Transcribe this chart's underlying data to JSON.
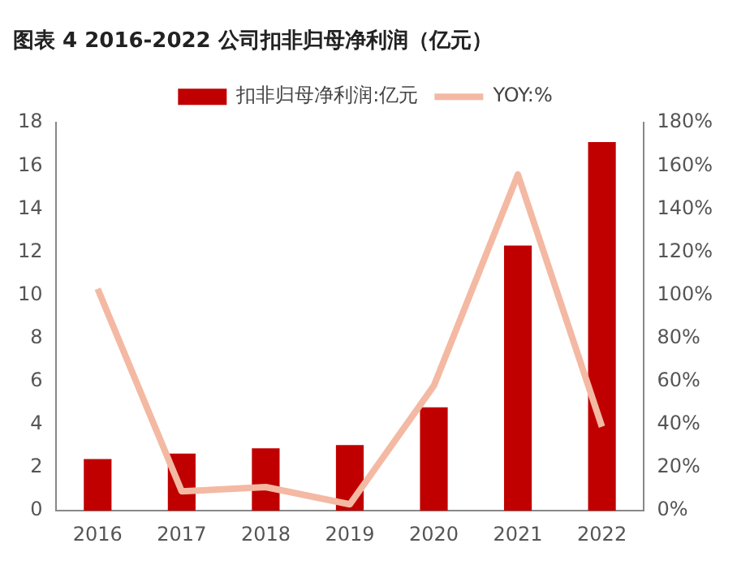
{
  "chart_data": {
    "type": "bar",
    "title": "图表 4 2016-2022 公司扣非归母净利润（亿元）",
    "categories": [
      "2016",
      "2017",
      "2018",
      "2019",
      "2020",
      "2021",
      "2022"
    ],
    "series": [
      {
        "name": "扣非归母净利润:亿元",
        "color": "#c00000",
        "values": [
          2.4,
          2.65,
          2.9,
          3.05,
          4.8,
          12.3,
          17.1
        ]
      },
      {
        "name": "YOY:%",
        "type": "line",
        "axis": "y2",
        "color": "#f4b9a3",
        "values": [
          103,
          9,
          11,
          3,
          58,
          156,
          39
        ]
      }
    ],
    "ylim": [
      0,
      18
    ],
    "yticks": [
      0,
      2,
      4,
      6,
      8,
      10,
      12,
      14,
      16,
      18
    ],
    "y2lim": [
      0,
      180
    ],
    "y2ticks": [
      {
        "value": 0,
        "label": "0%"
      },
      {
        "value": 20,
        "label": "20%"
      },
      {
        "value": 40,
        "label": "40%"
      },
      {
        "value": 60,
        "label": "60%"
      },
      {
        "value": 80,
        "label": "80%"
      },
      {
        "value": 100,
        "label": "100%"
      },
      {
        "value": 120,
        "label": "120%"
      },
      {
        "value": 140,
        "label": "140%"
      },
      {
        "value": 160,
        "label": "160%"
      },
      {
        "value": 180,
        "label": "180%"
      }
    ],
    "legend": "top",
    "marker": "none",
    "grid": false
  }
}
